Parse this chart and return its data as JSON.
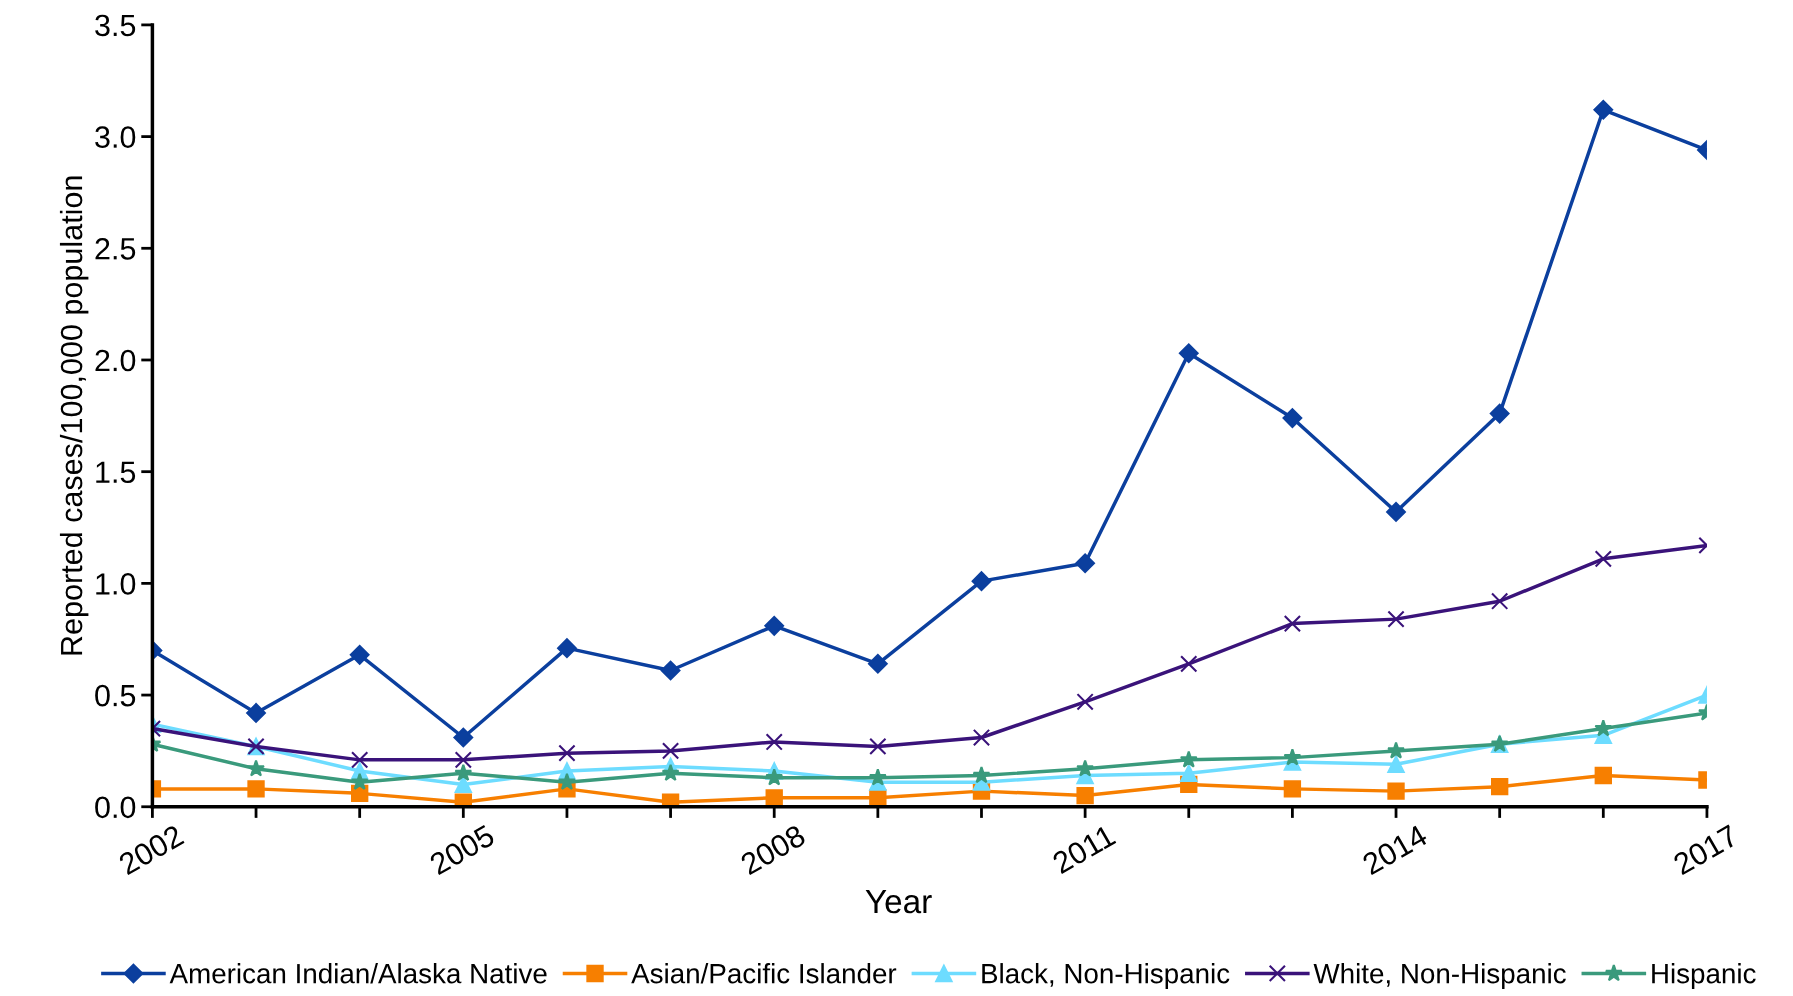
{
  "chart_data": {
    "type": "line",
    "xlabel": "Year",
    "ylabel": "Reported cases/100,000 population",
    "x": [
      2002,
      2003,
      2004,
      2005,
      2006,
      2007,
      2008,
      2009,
      2010,
      2011,
      2012,
      2013,
      2014,
      2015,
      2016,
      2017
    ],
    "xlim": [
      2002,
      2017
    ],
    "xticks": [
      2002,
      {
        "value": 2003,
        "label": null
      },
      {
        "value": 2004,
        "label": null
      },
      2005,
      {
        "value": 2006,
        "label": null
      },
      {
        "value": 2007,
        "label": null
      },
      2008,
      {
        "value": 2009,
        "label": null
      },
      {
        "value": 2010,
        "label": null
      },
      2011,
      {
        "value": 2012,
        "label": null
      },
      {
        "value": 2013,
        "label": null
      },
      2014,
      {
        "value": 2015,
        "label": null
      },
      {
        "value": 2016,
        "label": null
      },
      2017
    ],
    "ylim": [
      0,
      3.5
    ],
    "yticks": [
      {
        "value": 0,
        "label": "0.0"
      },
      {
        "value": 0.5,
        "label": "0.5"
      },
      {
        "value": 1,
        "label": "1.0"
      },
      {
        "value": 1.5,
        "label": "1.5"
      },
      {
        "value": 2,
        "label": "2.0"
      },
      {
        "value": 2.5,
        "label": "2.5"
      },
      {
        "value": 3,
        "label": "3.0"
      },
      {
        "value": 3.5,
        "label": "3.5"
      }
    ],
    "grid": false,
    "legend": "bottom",
    "line_style": "solid",
    "series": [
      {
        "name": "American Indian/Alaska Native",
        "color": "#0b3f9e",
        "marker": "diamond",
        "values": [
          0.7,
          0.42,
          0.68,
          0.31,
          0.71,
          0.61,
          0.81,
          0.64,
          1.01,
          1.09,
          2.03,
          1.74,
          1.32,
          1.76,
          3.12,
          2.94
        ]
      },
      {
        "name": "Asian/Pacific Islander",
        "color": "#f77f00",
        "marker": "square",
        "values": [
          0.08,
          0.08,
          0.06,
          0.02,
          0.08,
          0.02,
          0.04,
          0.04,
          0.07,
          0.05,
          0.1,
          0.08,
          0.07,
          0.09,
          0.14,
          0.12
        ]
      },
      {
        "name": "Black, Non-Hispanic",
        "color": "#6ddcff",
        "marker": "triangle",
        "values": [
          0.37,
          0.27,
          0.16,
          0.1,
          0.16,
          0.18,
          0.16,
          0.11,
          0.11,
          0.14,
          0.15,
          0.2,
          0.19,
          0.28,
          0.32,
          0.5
        ]
      },
      {
        "name": "White, Non-Hispanic",
        "color": "#3a137a",
        "marker": "cross",
        "values": [
          0.35,
          0.27,
          0.21,
          0.21,
          0.24,
          0.25,
          0.29,
          0.27,
          0.31,
          0.47,
          0.64,
          0.82,
          0.84,
          0.92,
          1.11,
          1.17
        ]
      },
      {
        "name": "Hispanic",
        "color": "#3a9a7c",
        "marker": "star",
        "values": [
          0.28,
          0.17,
          0.11,
          0.15,
          0.11,
          0.15,
          0.13,
          0.13,
          0.14,
          0.17,
          0.21,
          0.22,
          0.25,
          0.28,
          0.35,
          0.42
        ]
      }
    ]
  }
}
